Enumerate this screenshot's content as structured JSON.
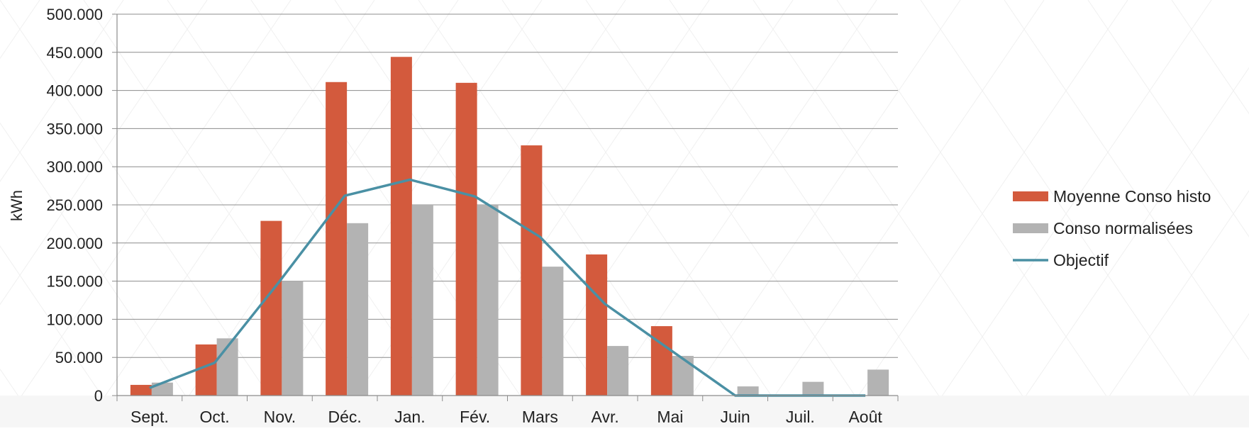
{
  "chart_data": {
    "type": "bar",
    "ylabel": "kWh",
    "ylim": [
      0,
      500000
    ],
    "yticks": [
      "0",
      "50.000",
      "100.000",
      "150.000",
      "200.000",
      "250.000",
      "300.000",
      "350.000",
      "400.000",
      "450.000",
      "500.000"
    ],
    "categories": [
      "Sept.",
      "Oct.",
      "Nov.",
      "Déc.",
      "Jan.",
      "Fév.",
      "Mars",
      "Avr.",
      "Mai",
      "Juin",
      "Juil.",
      "Août"
    ],
    "series": [
      {
        "name": "Moyenne Conso histo",
        "kind": "bar",
        "color": "#D35A3D",
        "values": [
          14000,
          67000,
          229000,
          411000,
          444000,
          410000,
          328000,
          185000,
          91000,
          0,
          0,
          0
        ]
      },
      {
        "name": "Conso normalisées",
        "kind": "bar",
        "color": "#B3B3B3",
        "values": [
          17000,
          75000,
          150000,
          226000,
          250000,
          250000,
          169000,
          65000,
          52000,
          12000,
          18000,
          34000
        ]
      },
      {
        "name": "Objectif",
        "kind": "line",
        "color": "#4A90A4",
        "values": [
          10000,
          43000,
          150000,
          262000,
          283000,
          261000,
          208000,
          120000,
          60000,
          0,
          0,
          0
        ]
      }
    ],
    "grid": true,
    "legend_position": "right"
  }
}
